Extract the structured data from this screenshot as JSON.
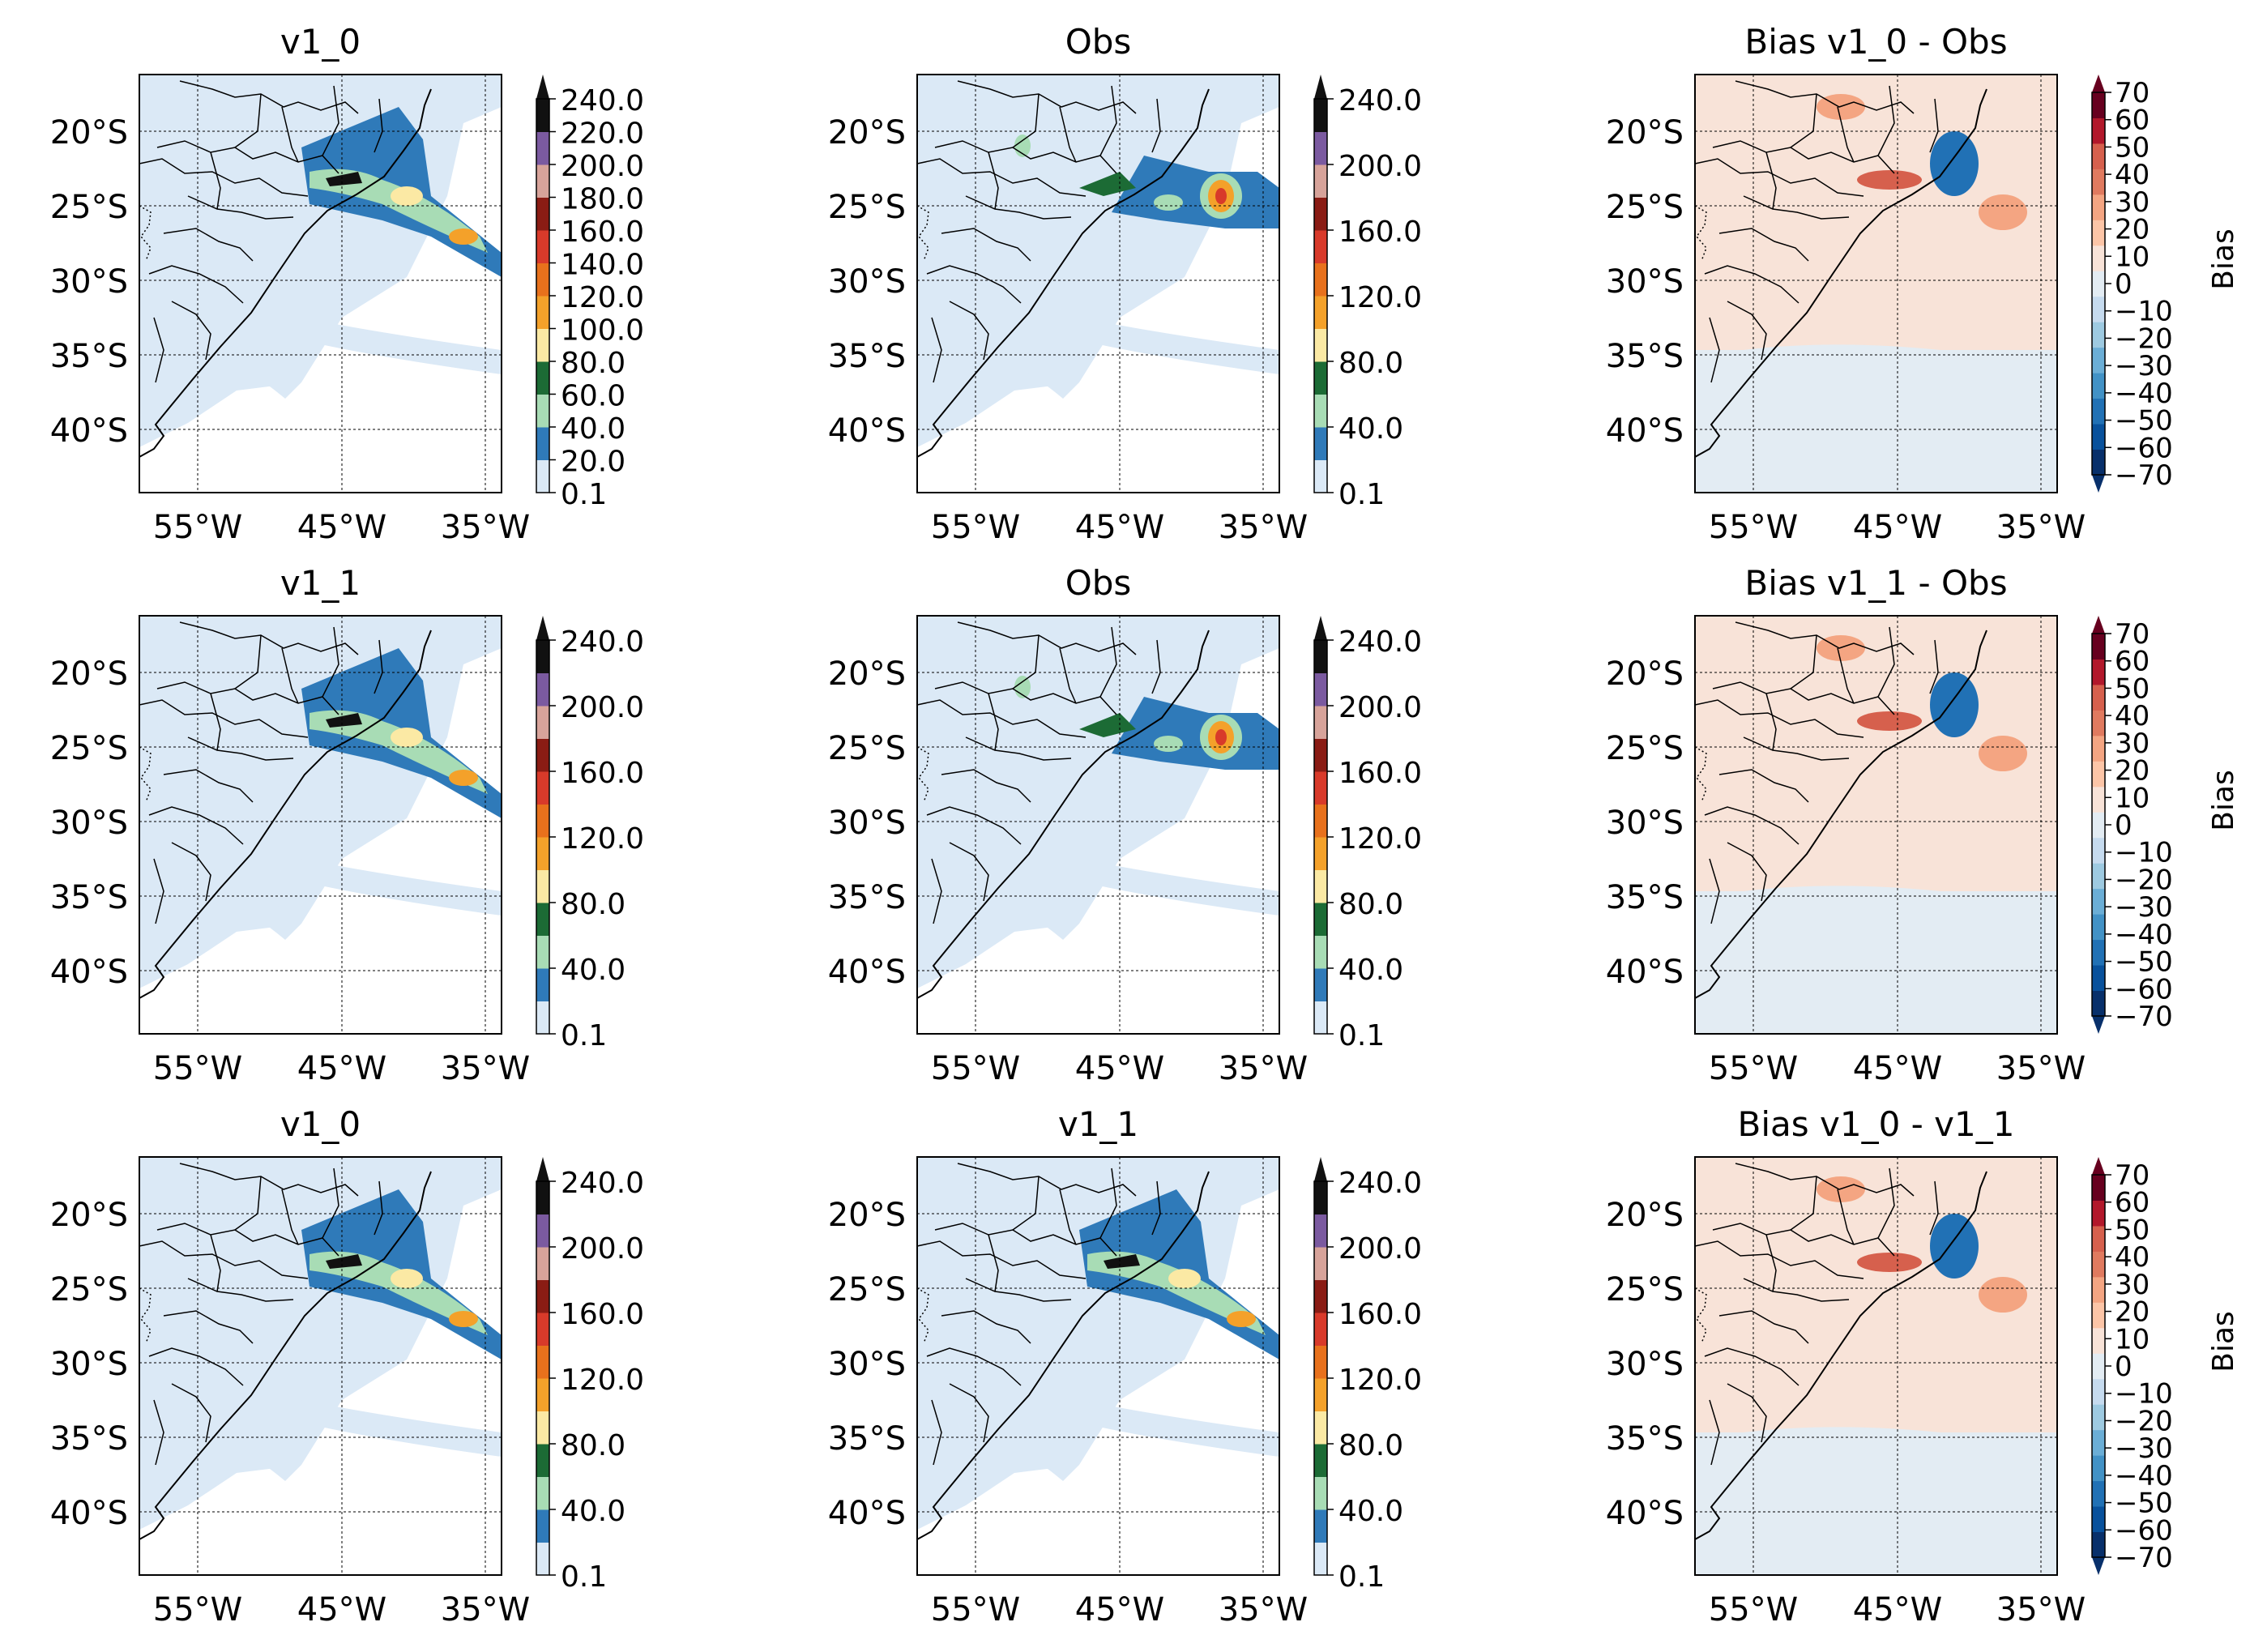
{
  "figure": {
    "panels": [
      {
        "title": "v1_0",
        "type": "precip"
      },
      {
        "title": "Obs",
        "type": "precip"
      },
      {
        "title": "Bias v1_0 - Obs",
        "type": "bias"
      },
      {
        "title": "v1_1",
        "type": "precip"
      },
      {
        "title": "Obs",
        "type": "precip"
      },
      {
        "title": "Bias v1_1 - Obs",
        "type": "bias"
      },
      {
        "title": "v1_0",
        "type": "precip"
      },
      {
        "title": "v1_1",
        "type": "precip"
      },
      {
        "title": "Bias v1_0 - v1_1",
        "type": "bias"
      }
    ],
    "lat_labels": [
      "20°S",
      "25°S",
      "30°S",
      "35°S",
      "40°S"
    ],
    "lon_labels": [
      "55°W",
      "45°W",
      "35°W"
    ],
    "precip_colorbar_full": {
      "ticks": [
        "240.0",
        "220.0",
        "200.0",
        "180.0",
        "160.0",
        "140.0",
        "120.0",
        "100.0",
        "80.0",
        "60.0",
        "40.0",
        "20.0",
        "0.1"
      ]
    },
    "precip_colorbar_short": {
      "ticks": [
        "240.0",
        "200.0",
        "160.0",
        "120.0",
        "80.0",
        "40.0",
        "0.1"
      ]
    },
    "bias_colorbar": {
      "label": "Bias",
      "ticks": [
        "70",
        "60",
        "50",
        "40",
        "30",
        "20",
        "10",
        "0",
        "−10",
        "−20",
        "−30",
        "−40",
        "−50",
        "−60",
        "−70"
      ]
    },
    "colors": {
      "precip_levels": [
        "#dbe9f6",
        "#2f7ab9",
        "#a8dcb5",
        "#1c6b35",
        "#fbe9a4",
        "#f4a12a",
        "#e8711c",
        "#d83a2a",
        "#8a1c14",
        "#d7a39a",
        "#7b5aa0",
        "#111111"
      ],
      "bias_levels": [
        "#08306b",
        "#08519c",
        "#2171b5",
        "#4292c6",
        "#6baed6",
        "#9ecae1",
        "#c6dbef",
        "#e3ecf3",
        "#f8e3d8",
        "#fcc5a7",
        "#f4a582",
        "#e07a5f",
        "#d6604d",
        "#b2182b",
        "#67001f"
      ]
    }
  }
}
